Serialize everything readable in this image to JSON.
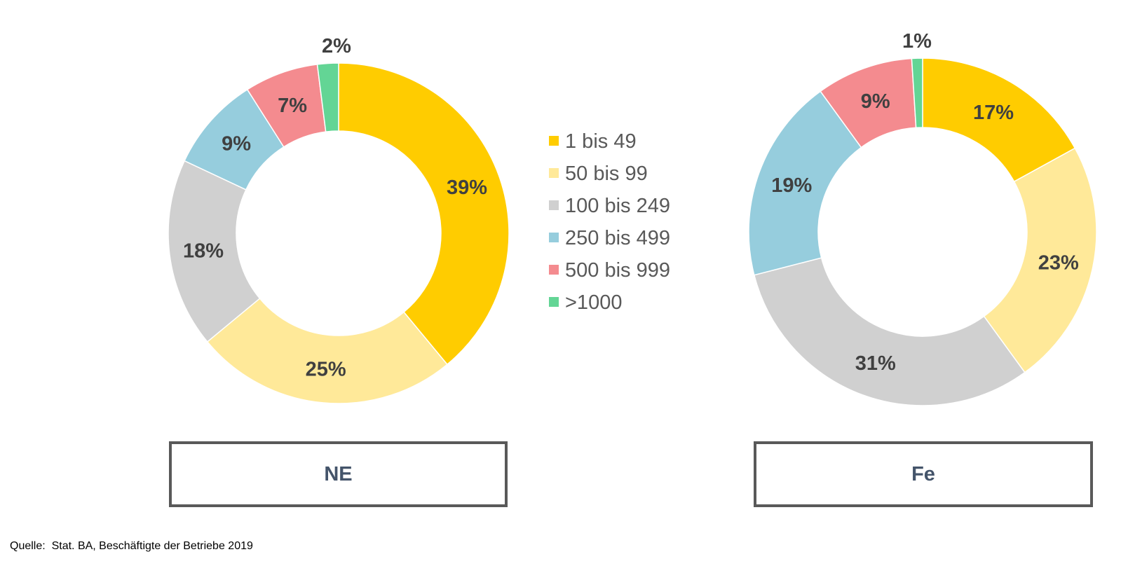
{
  "categories": [
    "1 bis 49",
    "50 bis 99",
    "100 bis 249",
    "250 bis 499",
    "500 bis 999",
    ">1000"
  ],
  "colors": [
    "#ffcc00",
    "#ffe999",
    "#d0d0d0",
    "#96cddd",
    "#f48b8f",
    "#63d595"
  ],
  "chart_data": [
    {
      "type": "pie",
      "donut": true,
      "title": "NE",
      "categories": [
        "1 bis 49",
        "50 bis 99",
        "100 bis 249",
        "250 bis 499",
        "500 bis 999",
        ">1000"
      ],
      "values": [
        39,
        25,
        18,
        9,
        7,
        2
      ],
      "unit": "%",
      "legend": "center-right"
    },
    {
      "type": "pie",
      "donut": true,
      "title": "Fe",
      "categories": [
        "1 bis 49",
        "50 bis 99",
        "100 bis 249",
        "250 bis 499",
        "500 bis 999",
        ">1000"
      ],
      "values": [
        17,
        23,
        31,
        19,
        9,
        1
      ],
      "unit": "%"
    }
  ],
  "source_label": "Quelle:",
  "source_text": "Stat. BA, Beschäftigte der Betriebe 2019"
}
